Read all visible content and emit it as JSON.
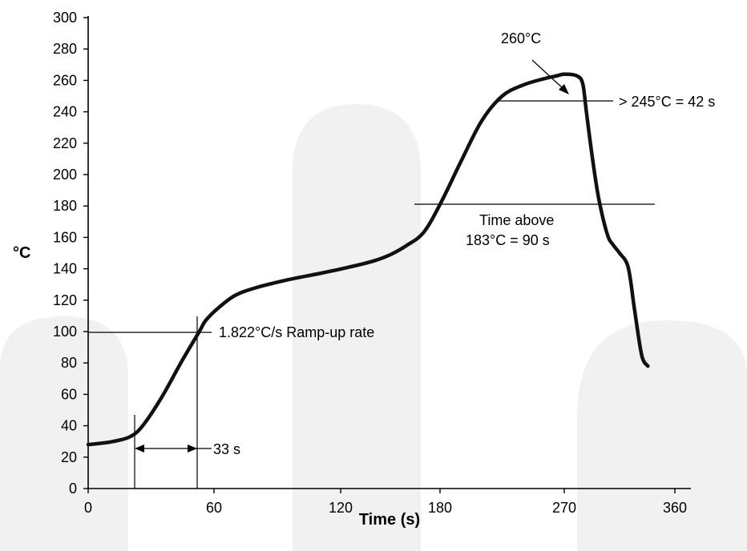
{
  "chart_data": {
    "type": "line",
    "xlabel": "Time (s)",
    "ylabel": "°C",
    "x_ticks": [
      "0",
      "60",
      "120",
      "180",
      "270",
      "360"
    ],
    "y_ticks": [
      "0",
      "20",
      "40",
      "60",
      "80",
      "100",
      "120",
      "140",
      "160",
      "180",
      "200",
      "220",
      "240",
      "260",
      "280",
      "300"
    ],
    "ylim": [
      0,
      300
    ],
    "grid": false,
    "series": [
      {
        "x": [
          0,
          7,
          12,
          20,
          26,
          35,
          45,
          53,
          56,
          62,
          70,
          80,
          95,
          110,
          125,
          140,
          150,
          160,
          170,
          180,
          195,
          210,
          225,
          240,
          255,
          265,
          270,
          280,
          285,
          288,
          293,
          298,
          305,
          310,
          315,
          322,
          327,
          333,
          338
        ],
        "y": [
          28,
          29,
          30,
          33,
          40,
          58,
          82,
          100,
          107,
          115,
          123,
          128,
          133,
          137,
          141,
          145,
          149,
          155,
          163,
          181,
          208,
          234,
          250,
          257,
          261,
          263,
          264,
          263,
          258,
          240,
          210,
          185,
          162,
          155,
          150,
          141,
          115,
          85,
          78
        ]
      }
    ],
    "annotations": {
      "peak": "260°C",
      "above_245": "> 245°C = 42 s",
      "time_above_line1": "Time above",
      "time_above_line2": "183°C = 90 s",
      "ramp_rate": "1.822°C/s Ramp-up rate",
      "ramp_time": "33 s"
    }
  }
}
